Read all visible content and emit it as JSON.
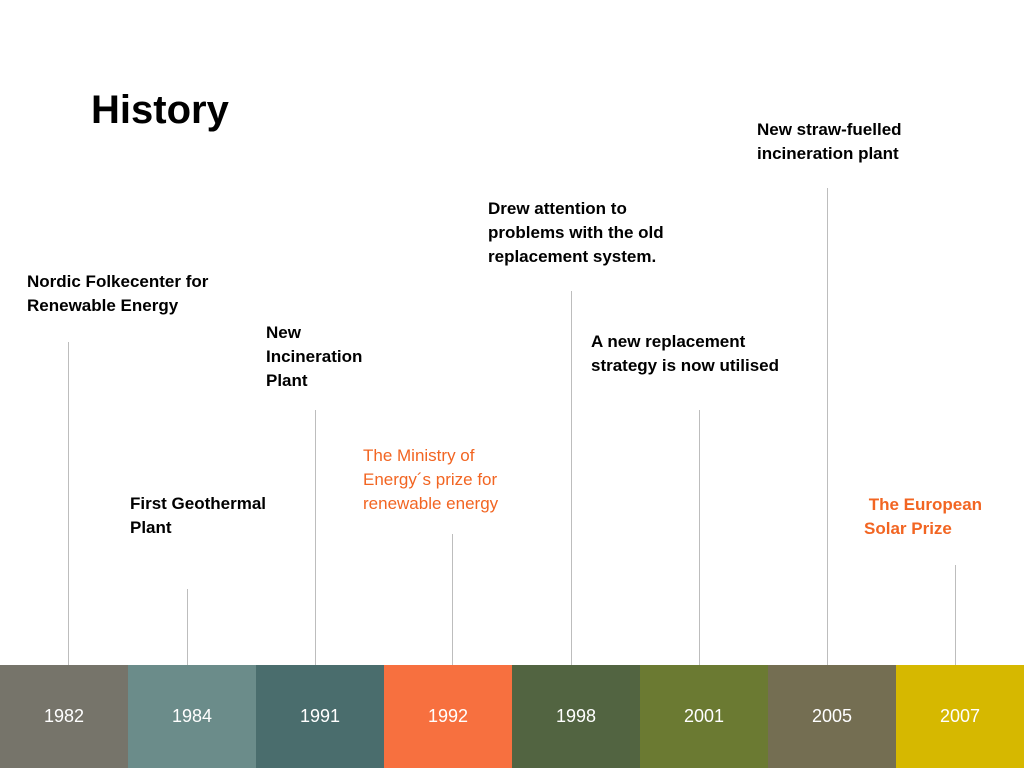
{
  "title": "History",
  "events": [
    {
      "year": "1982",
      "label": "Nordic Folkecenter for\nRenewable Energy",
      "style": "black"
    },
    {
      "year": "1984",
      "label": "First Geothermal\nPlant",
      "style": "black"
    },
    {
      "year": "1991",
      "label": "New\nIncineration\nPlant",
      "style": "black"
    },
    {
      "year": "1992",
      "label": "The Ministry of\nEnergy´s prize for\nrenewable energy",
      "style": "orange"
    },
    {
      "year": "1998",
      "label": "Drew attention to\nproblems with the old\nreplacement system.",
      "style": "black"
    },
    {
      "year": "2001",
      "label": "A new replacement\nstrategy is now utilised",
      "style": "black"
    },
    {
      "year": "2005",
      "label": "New straw-fuelled\nincineration plant",
      "style": "black"
    },
    {
      "year": "2007",
      "label": " The European\nSolar Prize",
      "style": "orange-bold"
    }
  ],
  "years": [
    {
      "label": "1982",
      "color": "#76746a"
    },
    {
      "label": "1984",
      "color": "#6b8c8a"
    },
    {
      "label": "1991",
      "color": "#4a6d6d"
    },
    {
      "label": "1992",
      "color": "#f7703f"
    },
    {
      "label": "1998",
      "color": "#526441"
    },
    {
      "label": "2001",
      "color": "#6b7a32"
    },
    {
      "label": "2005",
      "color": "#746e52"
    },
    {
      "label": "2007",
      "color": "#d6b800"
    }
  ]
}
